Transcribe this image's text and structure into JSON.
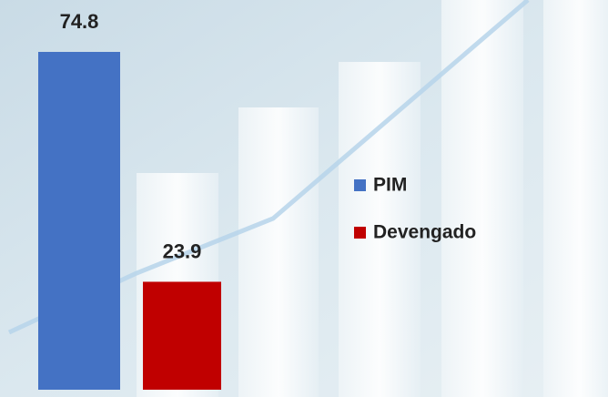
{
  "chart_data": {
    "type": "bar",
    "series": [
      {
        "name": "PIM",
        "color": "#4472c4",
        "values": [
          74.8
        ]
      },
      {
        "name": "Devengado",
        "color": "#c00000",
        "values": [
          23.9
        ]
      }
    ]
  }
}
